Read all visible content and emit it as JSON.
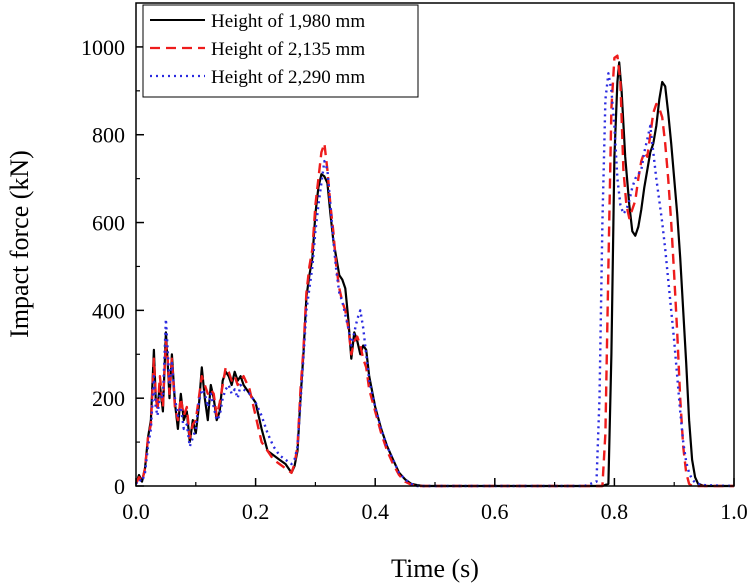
{
  "chart_data": {
    "type": "line",
    "xlabel": "Time (s)",
    "ylabel": "Impact force (kN)",
    "xlim": [
      0.0,
      1.0
    ],
    "ylim": [
      0,
      1100
    ],
    "xticks": [
      "0.0",
      "0.2",
      "0.4",
      "0.6",
      "0.8",
      "1.0"
    ],
    "xtick_values": [
      0.0,
      0.2,
      0.4,
      0.6,
      0.8,
      1.0
    ],
    "yticks": [
      "0",
      "200",
      "400",
      "600",
      "800",
      "1000"
    ],
    "ytick_values": [
      0,
      200,
      400,
      600,
      800,
      1000
    ],
    "grid": false,
    "legend_position": "top-left",
    "series": [
      {
        "name": "Height of 1,980 mm",
        "color": "#000000",
        "style": "solid",
        "x": [
          0.0,
          0.005,
          0.01,
          0.015,
          0.02,
          0.025,
          0.03,
          0.033,
          0.036,
          0.04,
          0.045,
          0.05,
          0.053,
          0.056,
          0.06,
          0.065,
          0.07,
          0.075,
          0.08,
          0.085,
          0.09,
          0.095,
          0.1,
          0.105,
          0.11,
          0.115,
          0.12,
          0.125,
          0.13,
          0.135,
          0.14,
          0.145,
          0.15,
          0.155,
          0.16,
          0.165,
          0.17,
          0.175,
          0.18,
          0.19,
          0.2,
          0.21,
          0.22,
          0.23,
          0.24,
          0.25,
          0.26,
          0.265,
          0.27,
          0.275,
          0.28,
          0.285,
          0.29,
          0.295,
          0.3,
          0.305,
          0.31,
          0.315,
          0.32,
          0.325,
          0.33,
          0.335,
          0.34,
          0.345,
          0.35,
          0.355,
          0.36,
          0.365,
          0.37,
          0.375,
          0.38,
          0.385,
          0.39,
          0.4,
          0.41,
          0.42,
          0.43,
          0.44,
          0.45,
          0.46,
          0.47,
          0.48,
          0.5,
          0.55,
          0.6,
          0.65,
          0.7,
          0.75,
          0.78,
          0.79,
          0.795,
          0.8,
          0.805,
          0.808,
          0.812,
          0.818,
          0.825,
          0.83,
          0.835,
          0.84,
          0.845,
          0.85,
          0.855,
          0.86,
          0.865,
          0.87,
          0.875,
          0.88,
          0.885,
          0.89,
          0.895,
          0.9,
          0.905,
          0.91,
          0.915,
          0.92,
          0.925,
          0.93,
          0.935,
          0.94,
          0.95,
          1.0
        ],
        "y": [
          5,
          25,
          10,
          40,
          110,
          150,
          310,
          200,
          180,
          230,
          170,
          350,
          280,
          200,
          300,
          190,
          130,
          210,
          150,
          170,
          100,
          150,
          120,
          180,
          270,
          200,
          150,
          230,
          200,
          150,
          170,
          240,
          260,
          250,
          230,
          260,
          240,
          250,
          230,
          210,
          190,
          130,
          80,
          70,
          60,
          50,
          30,
          45,
          80,
          200,
          300,
          430,
          480,
          520,
          620,
          680,
          710,
          705,
          690,
          620,
          560,
          520,
          480,
          470,
          450,
          380,
          290,
          350,
          330,
          300,
          320,
          310,
          250,
          180,
          130,
          90,
          60,
          30,
          15,
          5,
          2,
          0,
          0,
          0,
          0,
          0,
          0,
          0,
          0,
          5,
          300,
          750,
          920,
          965,
          900,
          750,
          640,
          580,
          570,
          590,
          630,
          680,
          720,
          760,
          780,
          820,
          880,
          920,
          910,
          850,
          780,
          700,
          620,
          520,
          400,
          280,
          150,
          60,
          20,
          5,
          0,
          0
        ]
      },
      {
        "name": "Height of 2,135 mm",
        "color": "#ee1c1c",
        "style": "dashed",
        "x": [
          0.0,
          0.005,
          0.01,
          0.015,
          0.02,
          0.025,
          0.03,
          0.033,
          0.036,
          0.04,
          0.045,
          0.05,
          0.053,
          0.056,
          0.06,
          0.065,
          0.07,
          0.075,
          0.08,
          0.085,
          0.09,
          0.095,
          0.1,
          0.105,
          0.11,
          0.115,
          0.12,
          0.125,
          0.13,
          0.135,
          0.14,
          0.145,
          0.15,
          0.155,
          0.16,
          0.165,
          0.17,
          0.175,
          0.18,
          0.19,
          0.2,
          0.21,
          0.22,
          0.23,
          0.24,
          0.25,
          0.26,
          0.265,
          0.27,
          0.275,
          0.28,
          0.285,
          0.29,
          0.295,
          0.3,
          0.305,
          0.31,
          0.315,
          0.32,
          0.325,
          0.33,
          0.335,
          0.34,
          0.345,
          0.35,
          0.355,
          0.36,
          0.365,
          0.37,
          0.375,
          0.38,
          0.385,
          0.39,
          0.4,
          0.41,
          0.42,
          0.43,
          0.44,
          0.45,
          0.46,
          0.47,
          0.48,
          0.5,
          0.55,
          0.6,
          0.65,
          0.7,
          0.75,
          0.78,
          0.785,
          0.79,
          0.795,
          0.8,
          0.805,
          0.81,
          0.815,
          0.82,
          0.825,
          0.83,
          0.835,
          0.84,
          0.845,
          0.85,
          0.855,
          0.86,
          0.865,
          0.87,
          0.875,
          0.88,
          0.885,
          0.89,
          0.895,
          0.9,
          0.905,
          0.91,
          0.915,
          0.92,
          0.925,
          0.93,
          1.0
        ],
        "y": [
          5,
          20,
          10,
          40,
          110,
          140,
          290,
          210,
          170,
          250,
          180,
          330,
          290,
          210,
          290,
          180,
          150,
          200,
          160,
          180,
          110,
          140,
          150,
          200,
          250,
          230,
          210,
          220,
          210,
          160,
          190,
          230,
          270,
          260,
          240,
          250,
          230,
          240,
          250,
          220,
          160,
          100,
          80,
          60,
          50,
          40,
          30,
          50,
          90,
          220,
          310,
          440,
          500,
          540,
          640,
          700,
          760,
          780,
          720,
          640,
          580,
          500,
          450,
          420,
          400,
          360,
          300,
          330,
          340,
          320,
          290,
          270,
          220,
          170,
          120,
          80,
          50,
          25,
          10,
          3,
          0,
          0,
          0,
          0,
          0,
          0,
          0,
          0,
          0,
          120,
          500,
          860,
          975,
          980,
          920,
          720,
          640,
          610,
          630,
          650,
          700,
          740,
          760,
          750,
          800,
          850,
          870,
          860,
          840,
          780,
          700,
          600,
          480,
          350,
          200,
          90,
          30,
          5,
          0,
          0
        ]
      },
      {
        "name": "Height of 2,290 mm",
        "color": "#2a2ae0",
        "style": "dotted",
        "x": [
          0.0,
          0.005,
          0.01,
          0.015,
          0.02,
          0.025,
          0.03,
          0.033,
          0.036,
          0.04,
          0.045,
          0.05,
          0.053,
          0.056,
          0.06,
          0.065,
          0.07,
          0.075,
          0.08,
          0.085,
          0.09,
          0.095,
          0.1,
          0.105,
          0.11,
          0.115,
          0.12,
          0.125,
          0.13,
          0.135,
          0.14,
          0.145,
          0.15,
          0.155,
          0.16,
          0.165,
          0.17,
          0.175,
          0.18,
          0.19,
          0.2,
          0.21,
          0.22,
          0.23,
          0.24,
          0.25,
          0.26,
          0.265,
          0.27,
          0.275,
          0.28,
          0.285,
          0.29,
          0.295,
          0.3,
          0.305,
          0.31,
          0.315,
          0.32,
          0.325,
          0.33,
          0.335,
          0.34,
          0.345,
          0.35,
          0.355,
          0.36,
          0.365,
          0.37,
          0.375,
          0.38,
          0.385,
          0.39,
          0.4,
          0.41,
          0.42,
          0.43,
          0.44,
          0.45,
          0.46,
          0.47,
          0.48,
          0.5,
          0.55,
          0.6,
          0.65,
          0.7,
          0.75,
          0.77,
          0.775,
          0.78,
          0.785,
          0.79,
          0.795,
          0.8,
          0.805,
          0.81,
          0.815,
          0.82,
          0.825,
          0.83,
          0.835,
          0.84,
          0.845,
          0.85,
          0.855,
          0.86,
          0.865,
          0.87,
          0.875,
          0.88,
          0.885,
          0.89,
          0.895,
          0.9,
          0.905,
          0.91,
          0.915,
          0.92,
          0.925,
          0.93,
          0.935,
          0.94,
          0.95,
          1.0
        ],
        "y": [
          5,
          15,
          10,
          30,
          90,
          130,
          250,
          180,
          160,
          210,
          200,
          380,
          310,
          230,
          280,
          200,
          160,
          180,
          130,
          140,
          90,
          110,
          130,
          190,
          220,
          210,
          180,
          210,
          180,
          150,
          160,
          200,
          220,
          230,
          210,
          220,
          200,
          230,
          220,
          210,
          190,
          160,
          120,
          90,
          70,
          60,
          50,
          60,
          90,
          190,
          290,
          400,
          450,
          500,
          580,
          640,
          690,
          740,
          720,
          640,
          560,
          490,
          440,
          420,
          390,
          360,
          320,
          350,
          380,
          400,
          360,
          300,
          240,
          180,
          130,
          90,
          60,
          30,
          15,
          5,
          0,
          0,
          0,
          0,
          0,
          0,
          0,
          0,
          10,
          200,
          600,
          880,
          940,
          900,
          820,
          700,
          640,
          620,
          630,
          650,
          680,
          700,
          710,
          720,
          760,
          790,
          820,
          760,
          700,
          650,
          600,
          540,
          470,
          400,
          330,
          250,
          170,
          100,
          55,
          30,
          15,
          8,
          5,
          2,
          0
        ]
      }
    ]
  }
}
